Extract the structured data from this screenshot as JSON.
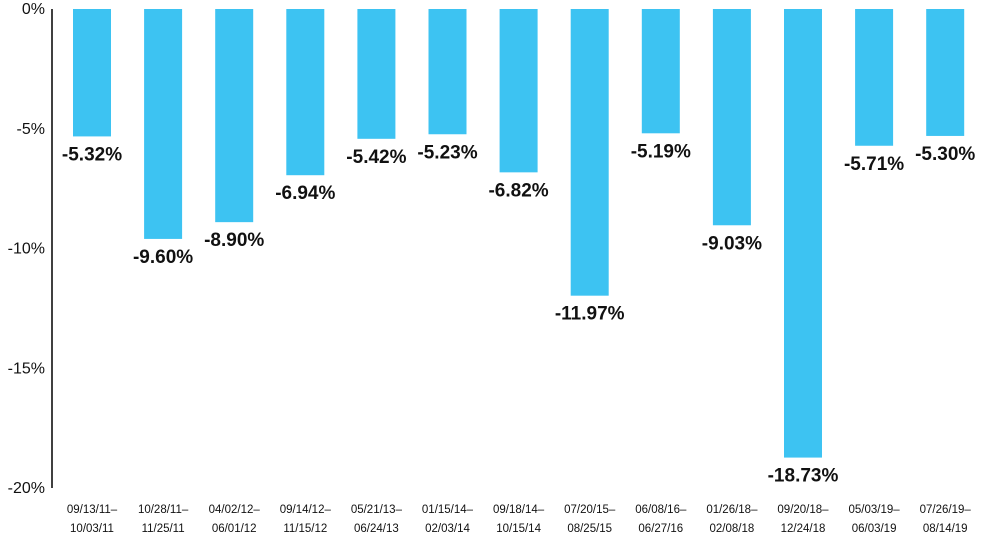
{
  "chart_data": {
    "type": "bar",
    "categories": [
      [
        "09/13/11–",
        "10/03/11"
      ],
      [
        "10/28/11–",
        "11/25/11"
      ],
      [
        "04/02/12–",
        "06/01/12"
      ],
      [
        "09/14/12–",
        "11/15/12"
      ],
      [
        "05/21/13–",
        "06/24/13"
      ],
      [
        "01/15/14–",
        "02/03/14"
      ],
      [
        "09/18/14–",
        "10/15/14"
      ],
      [
        "07/20/15–",
        "08/25/15"
      ],
      [
        "06/08/16–",
        "06/27/16"
      ],
      [
        "01/26/18–",
        "02/08/18"
      ],
      [
        "09/20/18–",
        "12/24/18"
      ],
      [
        "05/03/19–",
        "06/03/19"
      ],
      [
        "07/26/19–",
        "08/14/19"
      ]
    ],
    "values": [
      -5.32,
      -9.6,
      -8.9,
      -6.94,
      -5.42,
      -5.23,
      -6.82,
      -11.97,
      -5.19,
      -9.03,
      -18.73,
      -5.71,
      -5.3
    ],
    "data_labels": [
      "-5.32%",
      "-9.60%",
      "-8.90%",
      "-6.94%",
      "-5.42%",
      "-5.23%",
      "-6.82%",
      "-11.97%",
      "-5.19%",
      "-9.03%",
      "-18.73%",
      "-5.71%",
      "-5.30%"
    ],
    "y_ticks": [
      0,
      -5,
      -10,
      -15,
      -20
    ],
    "y_tick_labels": [
      "0%",
      "-5%",
      "-10%",
      "-15%",
      "-20%"
    ],
    "ylim": [
      -20,
      0
    ],
    "title": "",
    "xlabel": "",
    "ylabel": "",
    "grid": false,
    "bar_color": "#3DC3F2",
    "axis_color": "#000000"
  }
}
